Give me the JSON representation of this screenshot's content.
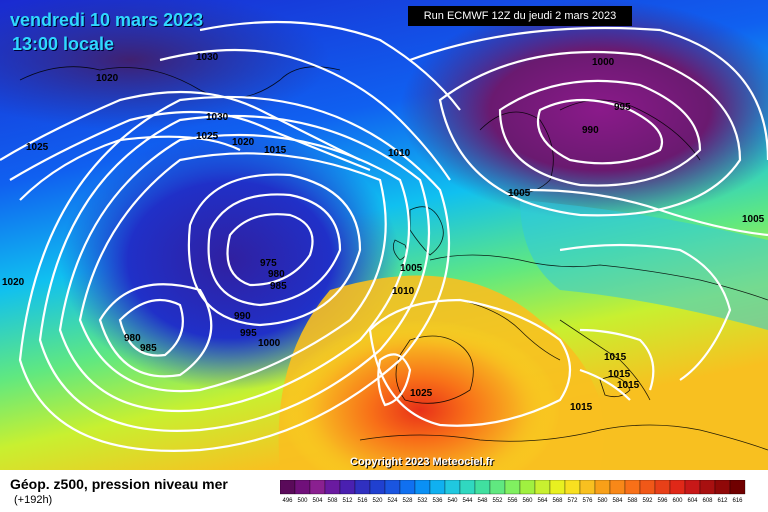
{
  "header": {
    "date_line": "vendredi 10 mars 2023",
    "time_line": "13:00 locale",
    "run_info": "Run ECMWF 12Z du jeudi 2 mars 2023"
  },
  "copyright": "Copyright 2023 Meteociel.fr",
  "legend": {
    "title": "Géop. z500, pression niveau mer",
    "subtitle": "(+192h)",
    "ticks": [
      "496",
      "500",
      "504",
      "508",
      "512",
      "516",
      "520",
      "524",
      "528",
      "532",
      "536",
      "540",
      "544",
      "548",
      "552",
      "556",
      "560",
      "564",
      "568",
      "572",
      "576",
      "580",
      "584",
      "588",
      "592",
      "596",
      "600",
      "604",
      "608",
      "612",
      "616"
    ],
    "colors": [
      "#5a0a5a",
      "#70107a",
      "#8a2090",
      "#6a1aa0",
      "#4a20b0",
      "#3030c0",
      "#2040d0",
      "#1a55e0",
      "#1070f0",
      "#0a90f5",
      "#10b0f0",
      "#20c8e0",
      "#30d8c0",
      "#40e0a0",
      "#60e880",
      "#80f060",
      "#a0f040",
      "#c8f030",
      "#e8f020",
      "#f8e020",
      "#f8c020",
      "#f8a018",
      "#f88818",
      "#f87018",
      "#f05818",
      "#e84018",
      "#e02818",
      "#c81818",
      "#a81010",
      "#900808",
      "#700000"
    ]
  },
  "isobars": [
    {
      "label": "1030"
    },
    {
      "label": "1020"
    },
    {
      "label": "1025"
    },
    {
      "label": "1030"
    },
    {
      "label": "1025"
    },
    {
      "label": "1020"
    },
    {
      "label": "1015"
    },
    {
      "label": "1010"
    },
    {
      "label": "1000"
    },
    {
      "label": "995"
    },
    {
      "label": "990"
    },
    {
      "label": "1005"
    },
    {
      "label": "1005"
    },
    {
      "label": "975"
    },
    {
      "label": "980"
    },
    {
      "label": "985"
    },
    {
      "label": "1020"
    },
    {
      "label": "990"
    },
    {
      "label": "995"
    },
    {
      "label": "1000"
    },
    {
      "label": "980"
    },
    {
      "label": "985"
    },
    {
      "label": "1005"
    },
    {
      "label": "1010"
    },
    {
      "label": "1025"
    },
    {
      "label": "1015"
    },
    {
      "label": "1015"
    },
    {
      "label": "1015"
    },
    {
      "label": "1015"
    }
  ],
  "colors": {
    "deep_blue": "#1a2ad0",
    "purple_low": "#7a1a80",
    "orange_ridge": "#f88818",
    "red_core": "#e84018",
    "title_cyan": "#2fd8ff"
  }
}
